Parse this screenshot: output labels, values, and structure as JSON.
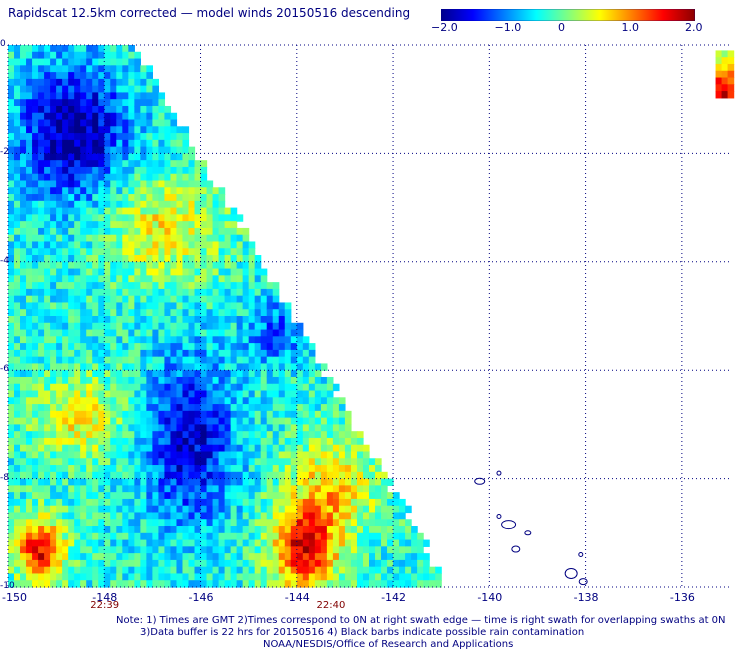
{
  "header": {
    "title": "Rapidscat 12.5km corrected — model winds 20150516 descending"
  },
  "colorbar": {
    "stops": [
      "#00008b",
      "#0000ff",
      "#0080ff",
      "#00ffff",
      "#80ff80",
      "#ffff00",
      "#ff8000",
      "#ff0000",
      "#8b0000"
    ],
    "ticks": [
      {
        "label": "−2.0",
        "value": -2.0
      },
      {
        "label": "−1.0",
        "value": -1.0
      },
      {
        "label": "0",
        "value": 0
      },
      {
        "label": "1.0",
        "value": 1.0
      },
      {
        "label": "2.0",
        "value": 2.0
      }
    ],
    "range": [
      -2.0,
      2.0
    ]
  },
  "map": {
    "xlim": [
      -150,
      -135
    ],
    "ylim": [
      -10,
      0
    ],
    "x_ticks": [
      {
        "label": "-150",
        "value": -150
      },
      {
        "label": "-148",
        "value": -148
      },
      {
        "label": "-146",
        "value": -146
      },
      {
        "label": "-144",
        "value": -144
      },
      {
        "label": "-142",
        "value": -142
      },
      {
        "label": "-140",
        "value": -140
      },
      {
        "label": "-138",
        "value": -138
      },
      {
        "label": "-136",
        "value": -136
      }
    ],
    "y_ticks": [
      {
        "label": "0",
        "value": 0
      },
      {
        "label": "-2",
        "value": -2
      },
      {
        "label": "-4",
        "value": -4
      },
      {
        "label": "-6",
        "value": -6
      },
      {
        "label": "-8",
        "value": -8
      },
      {
        "label": "-10",
        "value": -10
      }
    ],
    "grid": true,
    "coastline_color": "#000080",
    "swath_times": [
      {
        "label": "22:39",
        "lon": -148
      },
      {
        "label": "22:40",
        "lon": -143.3
      }
    ]
  },
  "notes": [
    "Note: 1) Times are GMT 2)Times correspond to 0N at right swath edge — time is right swath for overlapping swaths at 0N",
    "3)Data buffer is 22 hrs for 20150516 4) Black barbs indicate possible rain contamination",
    "NOAA/NESDIS/Office of Research and Applications"
  ]
}
